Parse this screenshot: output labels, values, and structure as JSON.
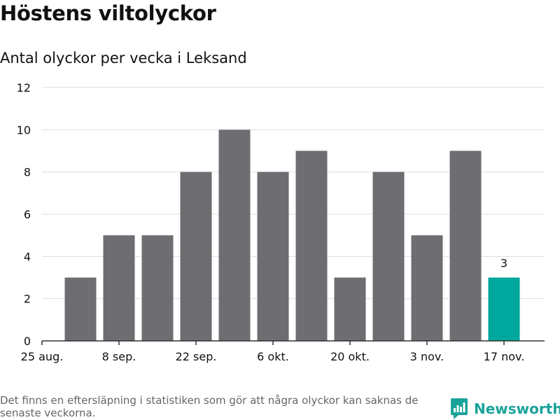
{
  "title": "Höstens viltolyckor",
  "subtitle": "Antal olyckor per vecka i Leksand",
  "colors": {
    "bar": "#6d6d72",
    "highlight": "#00a79c",
    "grid": "#dddddd",
    "axis": "#333333",
    "text": "#111111",
    "footnote": "#666666",
    "brand": "#1aa39a"
  },
  "chart_data": {
    "type": "bar",
    "categories": [
      "1 sep.",
      "8 sep.",
      "15 sep.",
      "22 sep.",
      "29 sep.",
      "6 okt.",
      "13 okt.",
      "20 okt.",
      "27 okt.",
      "3 nov.",
      "10 nov.",
      "17 nov."
    ],
    "values": [
      3,
      5,
      5,
      8,
      10,
      8,
      9,
      3,
      8,
      5,
      9,
      3
    ],
    "highlight_index": 11,
    "highlight_label": "3",
    "xlim": [
      "25 aug.",
      "17 nov."
    ],
    "x_ticks": [
      "25 aug.",
      "8 sep.",
      "22 sep.",
      "6 okt.",
      "20 okt.",
      "3 nov.",
      "17 nov."
    ],
    "y_ticks": [
      0,
      2,
      4,
      6,
      8,
      10,
      12
    ],
    "ylim": [
      0,
      12
    ],
    "grid": true,
    "xlabel": "",
    "ylabel": ""
  },
  "footnote": "Det finns en eftersläpning i statistiken som gör att några olyckor kan saknas de senaste veckorna.",
  "brand": {
    "name": "Newsworthy",
    "icon": "newsworthy-logo-icon"
  }
}
